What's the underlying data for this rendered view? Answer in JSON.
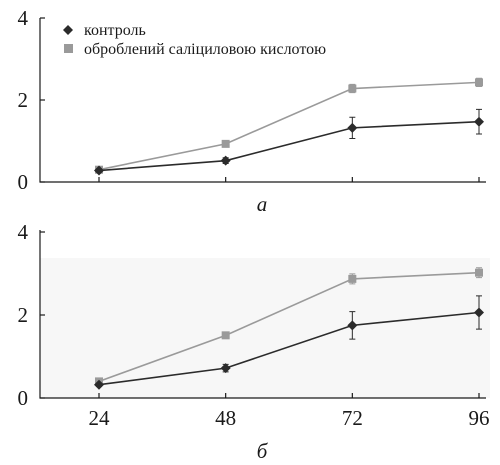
{
  "chart_data": [
    {
      "type": "line",
      "panel_label": "а",
      "x": [
        24,
        48,
        72,
        96
      ],
      "ylim": [
        0,
        4
      ],
      "yticks": [
        "0",
        "2",
        "4"
      ],
      "show_x_tick_labels": false,
      "legend": "top-left",
      "series": [
        {
          "name": "контроль",
          "color": "#2b2b2b",
          "marker": "diamond",
          "values": [
            0.28,
            0.52,
            1.32,
            1.47
          ],
          "errors": [
            0.04,
            0.07,
            0.26,
            0.3
          ]
        },
        {
          "name": "оброблений саліциловою кислотою",
          "color": "#9a9a9a",
          "marker": "square",
          "values": [
            0.3,
            0.93,
            2.28,
            2.43
          ],
          "errors": [
            0.04,
            0.05,
            0.1,
            0.1
          ]
        }
      ]
    },
    {
      "type": "line",
      "panel_label": "б",
      "x": [
        24,
        48,
        72,
        96
      ],
      "xticks": [
        "24",
        "48",
        "72",
        "96"
      ],
      "ylim": [
        0,
        4
      ],
      "yticks": [
        "0",
        "2",
        "4"
      ],
      "show_x_tick_labels": true,
      "series": [
        {
          "color": "#2b2b2b",
          "marker": "diamond",
          "values": [
            0.32,
            0.72,
            1.75,
            2.06
          ],
          "errors": [
            0.04,
            0.09,
            0.33,
            0.4
          ]
        },
        {
          "color": "#9a9a9a",
          "marker": "square",
          "values": [
            0.4,
            1.51,
            2.87,
            3.02
          ],
          "errors": [
            0.04,
            0.05,
            0.12,
            0.12
          ]
        }
      ]
    }
  ]
}
